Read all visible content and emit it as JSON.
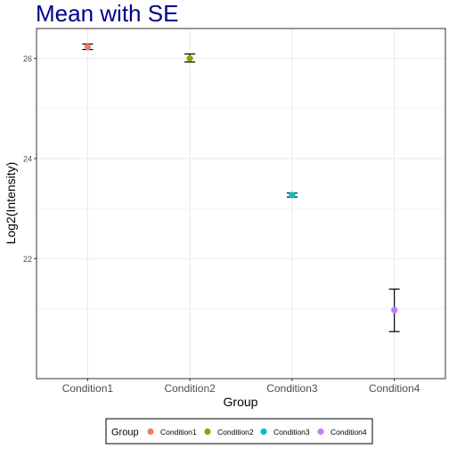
{
  "chart_data": {
    "type": "scatter",
    "title": "Mean with SE",
    "xlabel": "Group",
    "ylabel": "Log2(Intensity)",
    "categories": [
      "Condition1",
      "Condition2",
      "Condition3",
      "Condition4"
    ],
    "series": [
      {
        "category": "Condition1",
        "mean": 26.23,
        "se_low": 26.18,
        "se_high": 26.29,
        "color": "#F8766D"
      },
      {
        "category": "Condition2",
        "mean": 26.0,
        "se_low": 25.93,
        "se_high": 26.09,
        "color": "#7CAE00"
      },
      {
        "category": "Condition3",
        "mean": 23.27,
        "se_low": 23.23,
        "se_high": 23.31,
        "color": "#00BFC4"
      },
      {
        "category": "Condition4",
        "mean": 20.97,
        "se_low": 20.54,
        "se_high": 21.39,
        "color": "#C77CFF"
      }
    ],
    "ylim": [
      19.6,
      26.6
    ],
    "yticks": [
      22,
      24,
      26
    ],
    "ytick_labels": [
      "22",
      "24",
      "26"
    ],
    "grid": true,
    "legend": {
      "title": "Group",
      "position": "bottom",
      "entries": [
        "Condition1",
        "Condition2",
        "Condition3",
        "Condition4"
      ]
    },
    "colors": {
      "title": "#00008B",
      "grid": "#EBEBEB",
      "panel_border": "#333333",
      "errorbar": "#000000"
    }
  }
}
